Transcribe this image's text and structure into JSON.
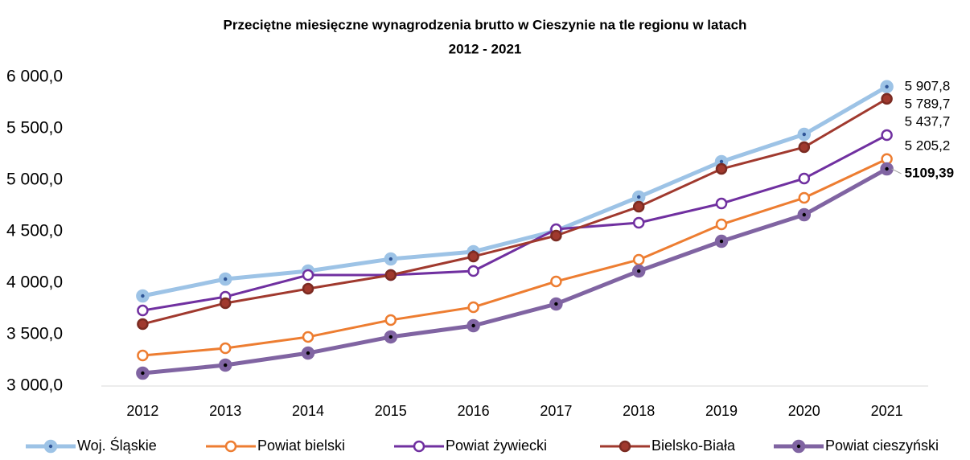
{
  "chart_data": {
    "type": "line",
    "title": "Przeciętne miesięczne wynagrodzenia brutto w Cieszynie na tle regionu w latach",
    "subtitle": "2012 - 2021",
    "categories": [
      "2012",
      "2013",
      "2014",
      "2015",
      "2016",
      "2017",
      "2018",
      "2019",
      "2020",
      "2021"
    ],
    "ylim": [
      3000,
      6000
    ],
    "yticks": [
      {
        "value": 3000,
        "label": "3 000,0"
      },
      {
        "value": 3500,
        "label": "3 500,0"
      },
      {
        "value": 4000,
        "label": "4 000,0"
      },
      {
        "value": 4500,
        "label": "4 500,0"
      },
      {
        "value": 5000,
        "label": "5 000,0"
      },
      {
        "value": 5500,
        "label": "5 500,0"
      },
      {
        "value": 6000,
        "label": "6 000,0"
      }
    ],
    "grid": false,
    "legend": "bottom",
    "series": [
      {
        "name": "Woj. Śląskie",
        "color": "#9dc3e6",
        "line_width": 5,
        "marker": "filled-dot",
        "values": [
          3875,
          4039,
          4117,
          4234,
          4305,
          4508,
          4836,
          5180,
          5445,
          5907.8
        ],
        "value_labels": [
          null,
          null,
          null,
          null,
          null,
          null,
          null,
          null,
          null,
          "5 907,8"
        ]
      },
      {
        "name": "Powiat bielski",
        "color": "#ed7d31",
        "line_width": 3,
        "marker": "hollow",
        "values": [
          3297,
          3367,
          3477,
          3641,
          3766,
          4016,
          4227,
          4570,
          4828,
          5205.2
        ],
        "value_labels": [
          null,
          null,
          null,
          null,
          null,
          null,
          null,
          null,
          null,
          "5 205,2"
        ]
      },
      {
        "name": "Powiat żywiecki",
        "color": "#7030a0",
        "line_width": 3,
        "marker": "hollow",
        "values": [
          3734,
          3867,
          4078,
          4078,
          4117,
          4523,
          4586,
          4773,
          5016,
          5437.7
        ],
        "value_labels": [
          null,
          null,
          null,
          null,
          null,
          null,
          null,
          null,
          null,
          "5 437,7"
        ]
      },
      {
        "name": "Bielsko-Biała",
        "color": "#a0392e",
        "line_width": 3,
        "marker": "filled",
        "values": [
          3602,
          3805,
          3945,
          4078,
          4258,
          4461,
          4742,
          5109,
          5320,
          5789.7
        ],
        "value_labels": [
          null,
          null,
          null,
          null,
          null,
          null,
          null,
          null,
          null,
          "5 789,7"
        ]
      },
      {
        "name": "Powiat cieszyński",
        "color": "#8064a2",
        "line_width": 5,
        "marker": "filled-dot",
        "values": [
          3125,
          3203,
          3320,
          3477,
          3586,
          3797,
          4117,
          4406,
          4664,
          5109.39
        ],
        "value_labels": [
          null,
          null,
          null,
          null,
          null,
          null,
          null,
          null,
          null,
          "5109,39"
        ]
      }
    ]
  }
}
